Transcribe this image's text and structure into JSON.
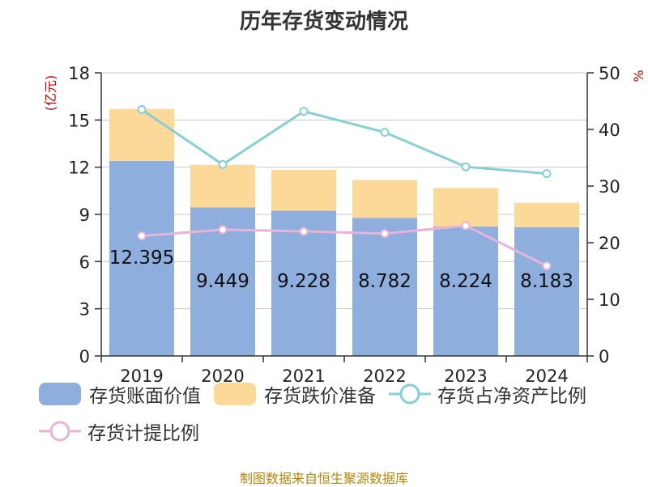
{
  "title": "历年存货变动情况",
  "source": "制图数据来自恒生聚源数据库",
  "colors": {
    "book_value": "#8eaedd",
    "impairment": "#fcd899",
    "net_asset_ratio": "#86d0d3",
    "provision_ratio": "#e7b4d8"
  },
  "chart_data": {
    "type": "bar",
    "stacked": true,
    "categories": [
      "2019",
      "2020",
      "2021",
      "2022",
      "2023",
      "2024"
    ],
    "y_left": {
      "label": "(亿元)",
      "ylim": [
        0,
        18
      ],
      "ticks": [
        0,
        3,
        6,
        9,
        12,
        15,
        18
      ]
    },
    "y_right": {
      "label": "%",
      "ylim": [
        0,
        50
      ],
      "ticks": [
        0,
        10,
        20,
        30,
        40,
        50
      ]
    },
    "grid": true,
    "legend_position": "bottom",
    "series": [
      {
        "name": "存货账面价值",
        "type": "bar",
        "axis": "left",
        "values": [
          12.395,
          9.449,
          9.228,
          8.782,
          8.224,
          8.183
        ],
        "labels": [
          "12.395",
          "9.449",
          "9.228",
          "8.782",
          "8.224",
          "8.183"
        ]
      },
      {
        "name": "存货跌价准备",
        "type": "bar",
        "axis": "left",
        "values": [
          3.3,
          2.7,
          2.6,
          2.4,
          2.45,
          1.55
        ]
      },
      {
        "name": "存货占净资产比例",
        "type": "line",
        "axis": "right",
        "values": [
          43.5,
          33.8,
          43.2,
          39.5,
          33.4,
          32.2
        ]
      },
      {
        "name": "存货计提比例",
        "type": "line",
        "axis": "right",
        "values": [
          21.2,
          22.3,
          22.0,
          21.6,
          23.0,
          15.9
        ]
      }
    ]
  }
}
